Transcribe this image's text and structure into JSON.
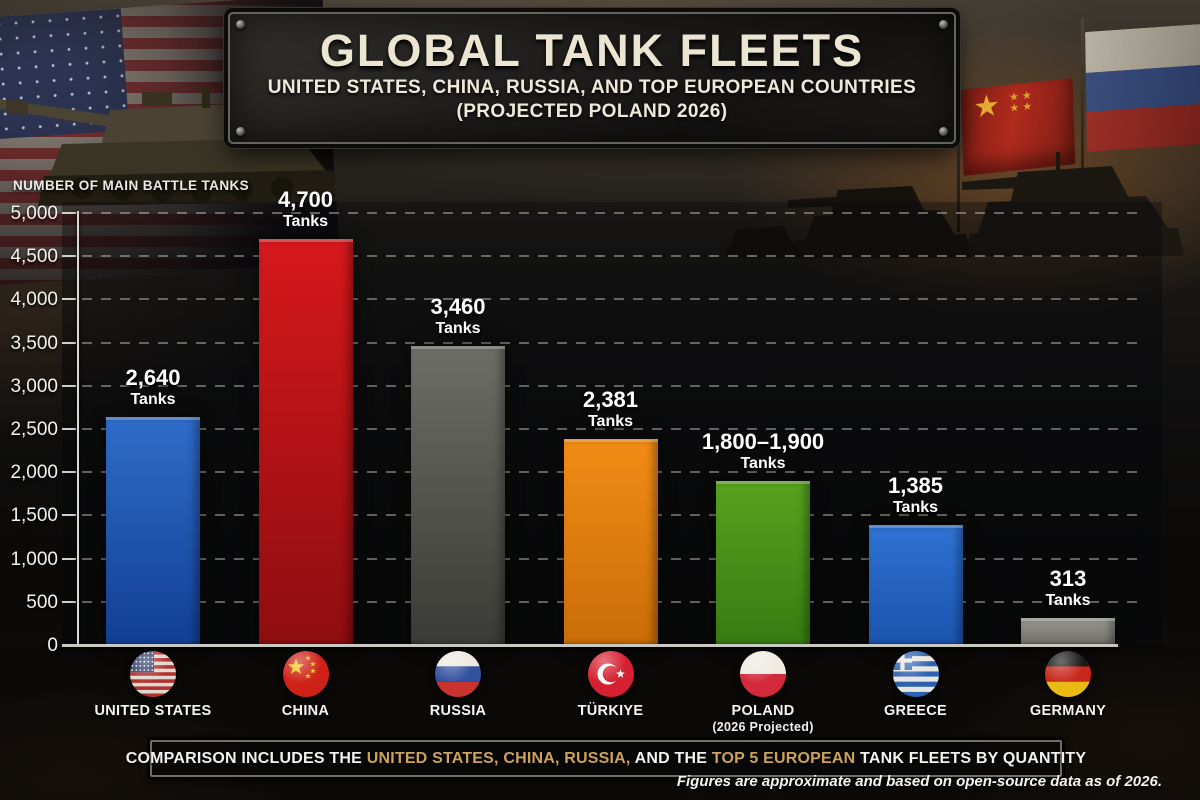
{
  "header": {
    "title": "GLOBAL TANK FLEETS",
    "subtitle_line1": "UNITED STATES, CHINA, RUSSIA, AND TOP EUROPEAN COUNTRIES",
    "subtitle_line2": "(PROJECTED POLAND 2026)"
  },
  "chart_data": {
    "type": "bar",
    "title": "GLOBAL TANK FLEETS",
    "ylabel": "NUMBER OF MAIN BATTLE TANKS",
    "ylim": [
      0,
      5000
    ],
    "grid": "dashed horizontal gridlines every 500",
    "legend": "none",
    "y_ticks": [
      {
        "label": "5,000",
        "value": 5000
      },
      {
        "label": "4,500",
        "value": 4500
      },
      {
        "label": "4,000",
        "value": 4000
      },
      {
        "label": "3,500",
        "value": 3500
      },
      {
        "label": "3,000",
        "value": 3000
      },
      {
        "label": "2,500",
        "value": 2500
      },
      {
        "label": "2,000",
        "value": 2000
      },
      {
        "label": "1,500",
        "value": 1500
      },
      {
        "label": "1,000",
        "value": 1000
      },
      {
        "label": "500",
        "value": 500
      },
      {
        "label": "0",
        "value": 0
      }
    ],
    "categories": [
      "UNITED STATES",
      "CHINA",
      "RUSSIA",
      "TÜRKIYE",
      "POLAND",
      "GREECE",
      "GERMANY"
    ],
    "bars": [
      {
        "country": "UNITED STATES",
        "value": 2640,
        "value_label": "2,640",
        "unit": "Tanks",
        "flag": "us",
        "color_top": "#2f6cc9",
        "color_bottom": "#123f93"
      },
      {
        "country": "CHINA",
        "value": 4700,
        "value_label": "4,700",
        "unit": "Tanks",
        "flag": "cn",
        "color_top": "#d6181b",
        "color_bottom": "#8e0d10"
      },
      {
        "country": "RUSSIA",
        "value": 3460,
        "value_label": "3,460",
        "unit": "Tanks",
        "flag": "ru",
        "color_top": "#6e6e68",
        "color_bottom": "#3a3a36"
      },
      {
        "country": "TÜRKIYE",
        "value": 2381,
        "value_label": "2,381",
        "unit": "Tanks",
        "flag": "tr",
        "color_top": "#f28c16",
        "color_bottom": "#c96d07"
      },
      {
        "country": "POLAND",
        "sub_label": "(2026 Projected)",
        "value": 1900,
        "value_label": "1,800–1,900",
        "unit": "Tanks",
        "flag": "pl",
        "color_top": "#57a21f",
        "color_bottom": "#367c12"
      },
      {
        "country": "GREECE",
        "value": 1385,
        "value_label": "1,385",
        "unit": "Tanks",
        "flag": "gr",
        "color_top": "#2f72d2",
        "color_bottom": "#1a54ae"
      },
      {
        "country": "GERMANY",
        "value": 313,
        "value_label": "313",
        "unit": "Tanks",
        "flag": "de",
        "color_top": "#9a9a94",
        "color_bottom": "#6e6e66"
      }
    ]
  },
  "footer": {
    "segments": [
      {
        "text": "COMPARISON INCLUDES THE ",
        "highlight": false
      },
      {
        "text": "UNITED STATES, CHINA, RUSSIA,",
        "highlight": true
      },
      {
        "text": " AND THE ",
        "highlight": false
      },
      {
        "text": "TOP 5 EUROPEAN",
        "highlight": true
      },
      {
        "text": " TANK FLEETS BY QUANTITY",
        "highlight": false
      }
    ],
    "highlight_color": "#cfa25c",
    "note": "Figures are approximate and based on open-source data as of 2026."
  }
}
